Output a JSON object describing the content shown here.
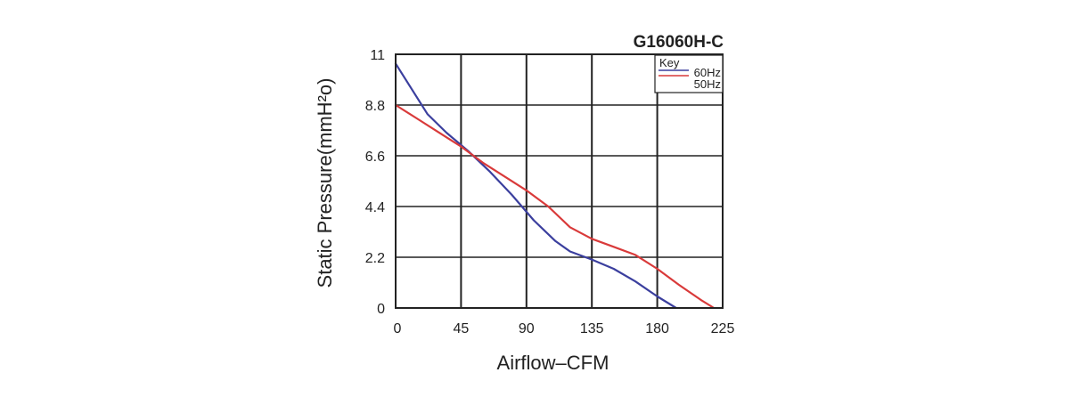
{
  "chart_data": {
    "type": "line",
    "title": "G16060H-C",
    "xlabel": "Airflow–CFM",
    "ylabel": "Static Pressure(mmH²o)",
    "xlim": [
      0,
      225
    ],
    "ylim": [
      0,
      11
    ],
    "x_ticks": [
      "0",
      "45",
      "90",
      "135",
      "180",
      "225"
    ],
    "y_ticks": [
      "0",
      "2.2",
      "4.4",
      "6.6",
      "8.8",
      "11"
    ],
    "grid": true,
    "legend": {
      "title": "Key",
      "position": "top-right"
    },
    "series": [
      {
        "name": "60Hz",
        "color": "#3b3f9e",
        "points": [
          [
            0,
            10.6
          ],
          [
            10,
            9.6
          ],
          [
            22,
            8.4
          ],
          [
            35,
            7.6
          ],
          [
            50,
            6.8
          ],
          [
            65,
            5.9
          ],
          [
            80,
            4.9
          ],
          [
            95,
            3.8
          ],
          [
            110,
            2.9
          ],
          [
            120,
            2.45
          ],
          [
            135,
            2.1
          ],
          [
            150,
            1.7
          ],
          [
            165,
            1.15
          ],
          [
            180,
            0.5
          ],
          [
            193,
            0
          ]
        ]
      },
      {
        "name": "50Hz",
        "color": "#d93a3a",
        "points": [
          [
            0,
            8.8
          ],
          [
            15,
            8.2
          ],
          [
            30,
            7.6
          ],
          [
            45,
            7.0
          ],
          [
            60,
            6.3
          ],
          [
            75,
            5.7
          ],
          [
            90,
            5.1
          ],
          [
            105,
            4.4
          ],
          [
            120,
            3.5
          ],
          [
            135,
            3.0
          ],
          [
            150,
            2.65
          ],
          [
            165,
            2.3
          ],
          [
            180,
            1.7
          ],
          [
            195,
            1.0
          ],
          [
            210,
            0.35
          ],
          [
            219,
            0
          ]
        ]
      }
    ]
  }
}
